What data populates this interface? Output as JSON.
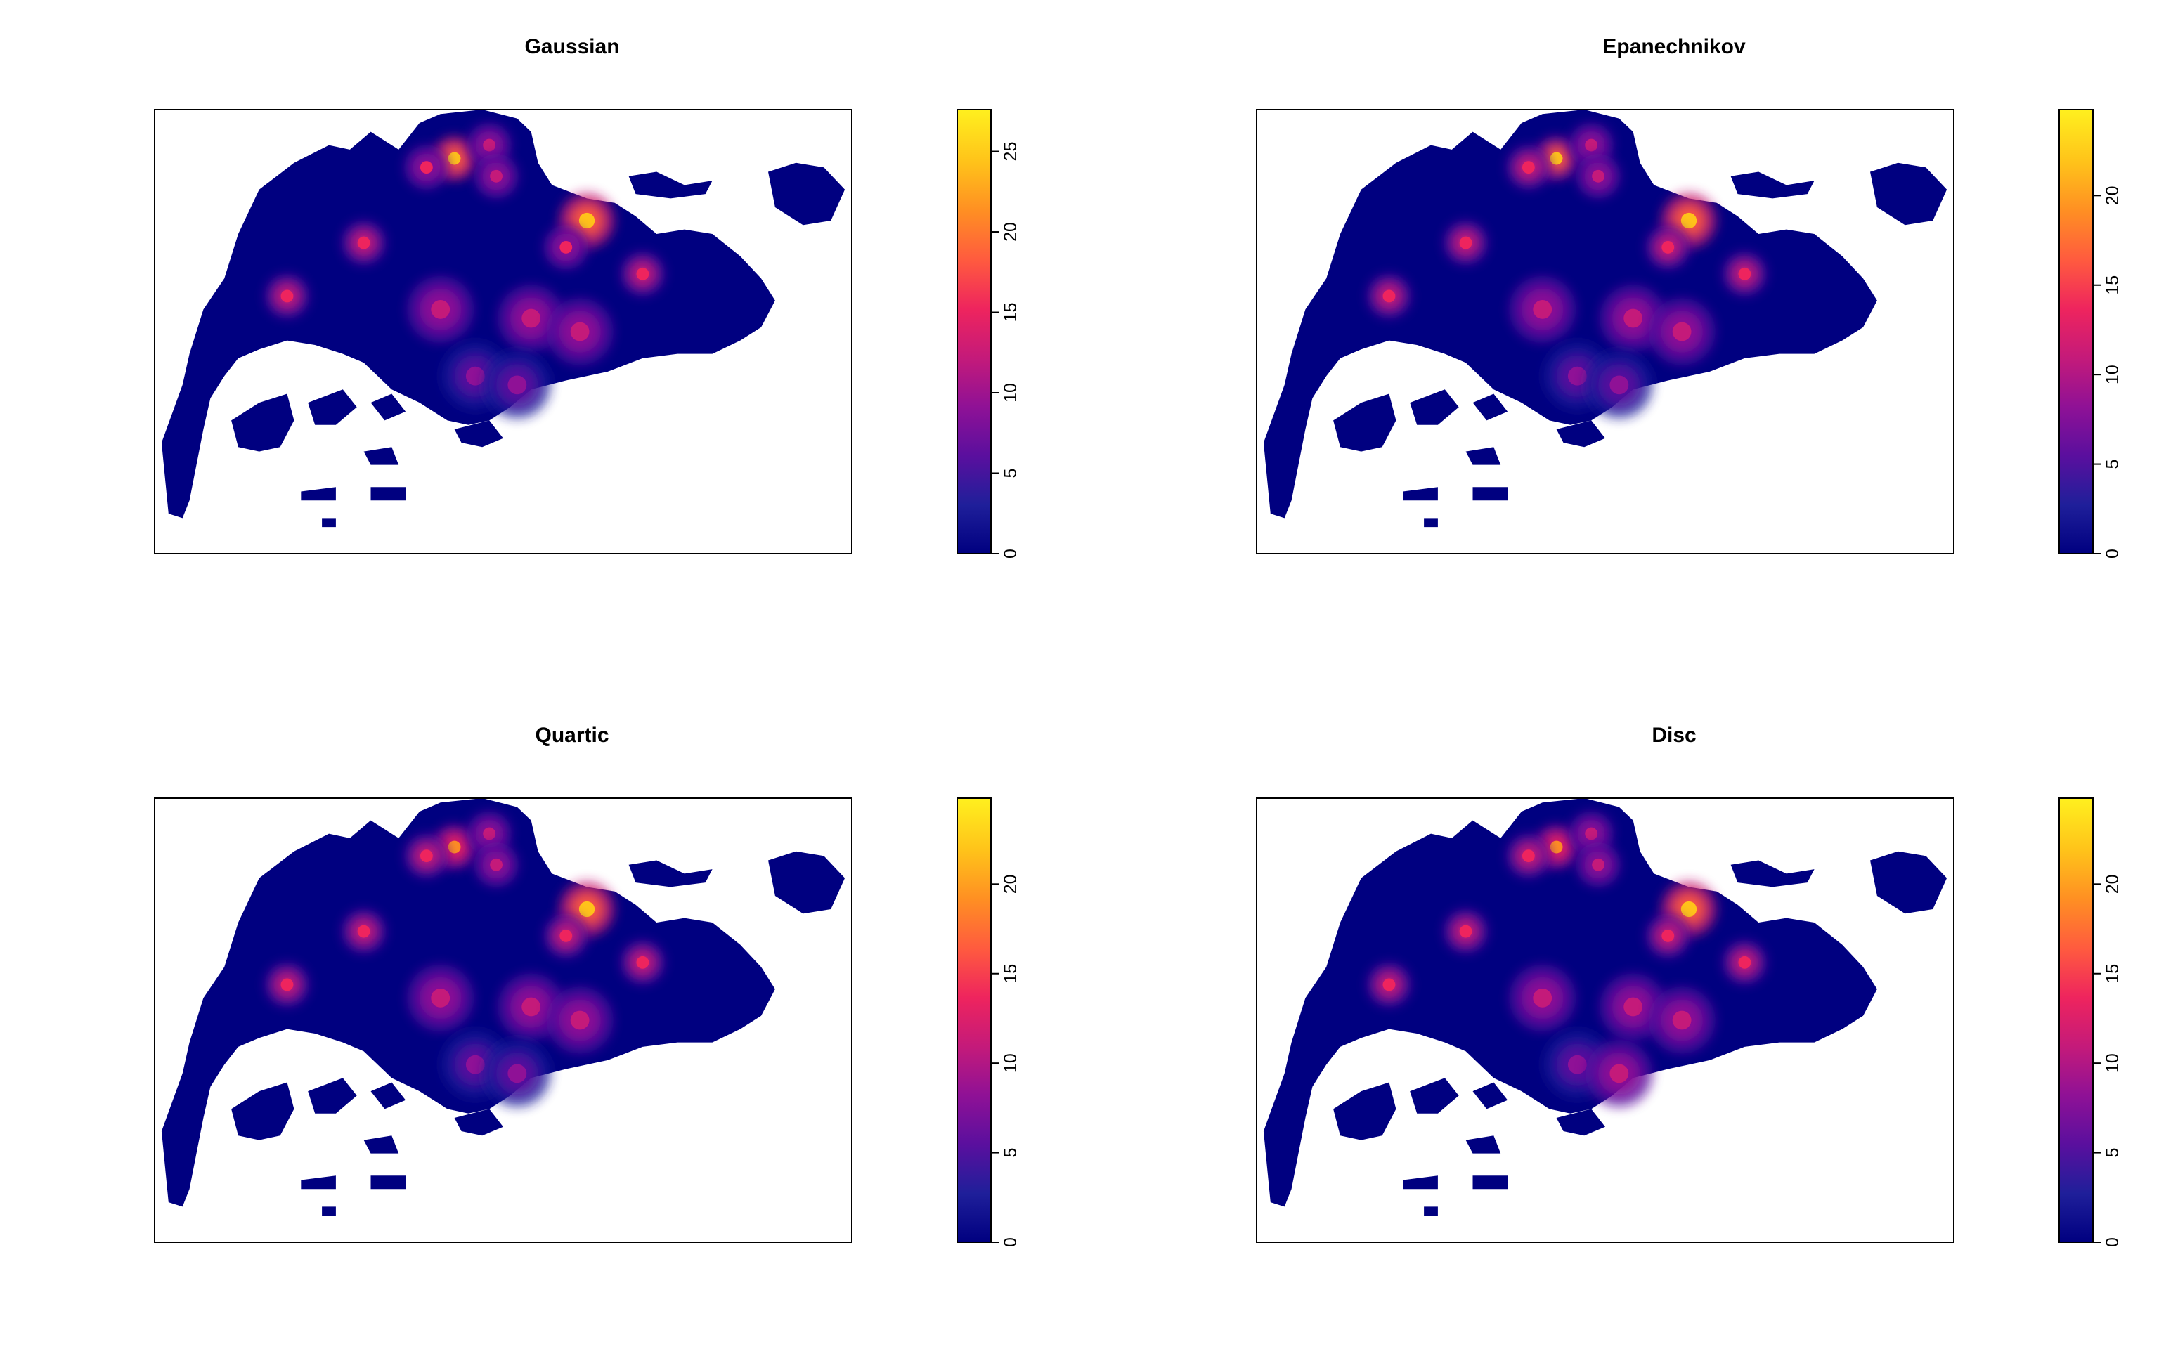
{
  "chart_data": [
    {
      "type": "heatmap",
      "title": "Gaussian",
      "legend_placement": "right",
      "value_range": [
        0,
        27.6
      ],
      "legend_ticks": [
        "0",
        "5",
        "10",
        "15",
        "20",
        "25"
      ],
      "colormap": [
        "#000080",
        "#1f1f9a",
        "#5a0f9e",
        "#8f1196",
        "#c41a7a",
        "#ee245e",
        "#ff5a3f",
        "#ff8e23",
        "#ffc21a",
        "#fff01e"
      ],
      "hotspots": [
        {
          "x": 0.43,
          "y": 0.11,
          "value": 24,
          "r": 0.02
        },
        {
          "x": 0.39,
          "y": 0.13,
          "value": 14,
          "r": 0.02
        },
        {
          "x": 0.48,
          "y": 0.08,
          "value": 13,
          "r": 0.02
        },
        {
          "x": 0.49,
          "y": 0.15,
          "value": 12,
          "r": 0.02
        },
        {
          "x": 0.62,
          "y": 0.25,
          "value": 26,
          "r": 0.025
        },
        {
          "x": 0.59,
          "y": 0.31,
          "value": 14,
          "r": 0.02
        },
        {
          "x": 0.7,
          "y": 0.37,
          "value": 16,
          "r": 0.02
        },
        {
          "x": 0.3,
          "y": 0.3,
          "value": 16,
          "r": 0.02
        },
        {
          "x": 0.19,
          "y": 0.42,
          "value": 15,
          "r": 0.02
        },
        {
          "x": 0.41,
          "y": 0.45,
          "value": 11,
          "r": 0.03
        },
        {
          "x": 0.54,
          "y": 0.47,
          "value": 12,
          "r": 0.03
        },
        {
          "x": 0.61,
          "y": 0.5,
          "value": 11,
          "r": 0.03
        },
        {
          "x": 0.46,
          "y": 0.6,
          "value": 9,
          "r": 0.03
        },
        {
          "x": 0.52,
          "y": 0.62,
          "value": 10,
          "r": 0.03
        }
      ]
    },
    {
      "type": "heatmap",
      "title": "Epanechnikov",
      "legend_placement": "right",
      "value_range": [
        0,
        24.8
      ],
      "legend_ticks": [
        "0",
        "5",
        "10",
        "15",
        "20"
      ],
      "colormap": [
        "#000080",
        "#1f1f9a",
        "#5a0f9e",
        "#8f1196",
        "#c41a7a",
        "#ee245e",
        "#ff5a3f",
        "#ff8e23",
        "#ffc21a",
        "#fff01e"
      ],
      "hotspots": [
        {
          "x": 0.43,
          "y": 0.11,
          "value": 21,
          "r": 0.02
        },
        {
          "x": 0.39,
          "y": 0.13,
          "value": 13,
          "r": 0.02
        },
        {
          "x": 0.48,
          "y": 0.08,
          "value": 12,
          "r": 0.02
        },
        {
          "x": 0.49,
          "y": 0.15,
          "value": 11,
          "r": 0.02
        },
        {
          "x": 0.62,
          "y": 0.25,
          "value": 23,
          "r": 0.025
        },
        {
          "x": 0.59,
          "y": 0.31,
          "value": 13,
          "r": 0.02
        },
        {
          "x": 0.7,
          "y": 0.37,
          "value": 15,
          "r": 0.02
        },
        {
          "x": 0.3,
          "y": 0.3,
          "value": 15,
          "r": 0.02
        },
        {
          "x": 0.19,
          "y": 0.42,
          "value": 14,
          "r": 0.02
        },
        {
          "x": 0.41,
          "y": 0.45,
          "value": 10,
          "r": 0.03
        },
        {
          "x": 0.54,
          "y": 0.47,
          "value": 11,
          "r": 0.03
        },
        {
          "x": 0.61,
          "y": 0.5,
          "value": 10,
          "r": 0.03
        },
        {
          "x": 0.46,
          "y": 0.6,
          "value": 9,
          "r": 0.03
        },
        {
          "x": 0.52,
          "y": 0.62,
          "value": 9,
          "r": 0.03
        }
      ]
    },
    {
      "type": "heatmap",
      "title": "Quartic",
      "legend_placement": "right",
      "value_range": [
        0,
        24.8
      ],
      "legend_ticks": [
        "0",
        "5",
        "10",
        "15",
        "20"
      ],
      "colormap": [
        "#000080",
        "#1f1f9a",
        "#5a0f9e",
        "#8f1196",
        "#c41a7a",
        "#ee245e",
        "#ff5a3f",
        "#ff8e23",
        "#ffc21a",
        "#fff01e"
      ],
      "hotspots": [
        {
          "x": 0.43,
          "y": 0.11,
          "value": 20,
          "r": 0.02
        },
        {
          "x": 0.39,
          "y": 0.13,
          "value": 13,
          "r": 0.02
        },
        {
          "x": 0.48,
          "y": 0.08,
          "value": 12,
          "r": 0.02
        },
        {
          "x": 0.49,
          "y": 0.15,
          "value": 11,
          "r": 0.02
        },
        {
          "x": 0.62,
          "y": 0.25,
          "value": 22,
          "r": 0.025
        },
        {
          "x": 0.59,
          "y": 0.31,
          "value": 13,
          "r": 0.02
        },
        {
          "x": 0.7,
          "y": 0.37,
          "value": 15,
          "r": 0.02
        },
        {
          "x": 0.3,
          "y": 0.3,
          "value": 15,
          "r": 0.02
        },
        {
          "x": 0.19,
          "y": 0.42,
          "value": 14,
          "r": 0.02
        },
        {
          "x": 0.41,
          "y": 0.45,
          "value": 10,
          "r": 0.03
        },
        {
          "x": 0.54,
          "y": 0.47,
          "value": 11,
          "r": 0.03
        },
        {
          "x": 0.61,
          "y": 0.5,
          "value": 10,
          "r": 0.03
        },
        {
          "x": 0.46,
          "y": 0.6,
          "value": 9,
          "r": 0.03
        },
        {
          "x": 0.52,
          "y": 0.62,
          "value": 9,
          "r": 0.03
        }
      ]
    },
    {
      "type": "heatmap",
      "title": "Disc",
      "legend_placement": "right",
      "value_range": [
        0,
        24.8
      ],
      "legend_ticks": [
        "0",
        "5",
        "10",
        "15",
        "20"
      ],
      "colormap": [
        "#000080",
        "#1f1f9a",
        "#5a0f9e",
        "#8f1196",
        "#c41a7a",
        "#ee245e",
        "#ff5a3f",
        "#ff8e23",
        "#ffc21a",
        "#fff01e"
      ],
      "hotspots": [
        {
          "x": 0.43,
          "y": 0.11,
          "value": 19,
          "r": 0.02
        },
        {
          "x": 0.39,
          "y": 0.13,
          "value": 14,
          "r": 0.02
        },
        {
          "x": 0.48,
          "y": 0.08,
          "value": 12,
          "r": 0.02
        },
        {
          "x": 0.49,
          "y": 0.15,
          "value": 11,
          "r": 0.02
        },
        {
          "x": 0.62,
          "y": 0.25,
          "value": 22,
          "r": 0.025
        },
        {
          "x": 0.59,
          "y": 0.31,
          "value": 13,
          "r": 0.02
        },
        {
          "x": 0.7,
          "y": 0.37,
          "value": 15,
          "r": 0.02
        },
        {
          "x": 0.3,
          "y": 0.3,
          "value": 14,
          "r": 0.02
        },
        {
          "x": 0.19,
          "y": 0.42,
          "value": 15,
          "r": 0.02
        },
        {
          "x": 0.41,
          "y": 0.45,
          "value": 10,
          "r": 0.03
        },
        {
          "x": 0.54,
          "y": 0.47,
          "value": 11,
          "r": 0.03
        },
        {
          "x": 0.61,
          "y": 0.5,
          "value": 12,
          "r": 0.03
        },
        {
          "x": 0.46,
          "y": 0.6,
          "value": 9,
          "r": 0.03
        },
        {
          "x": 0.52,
          "y": 0.62,
          "value": 10,
          "r": 0.03
        }
      ]
    }
  ]
}
